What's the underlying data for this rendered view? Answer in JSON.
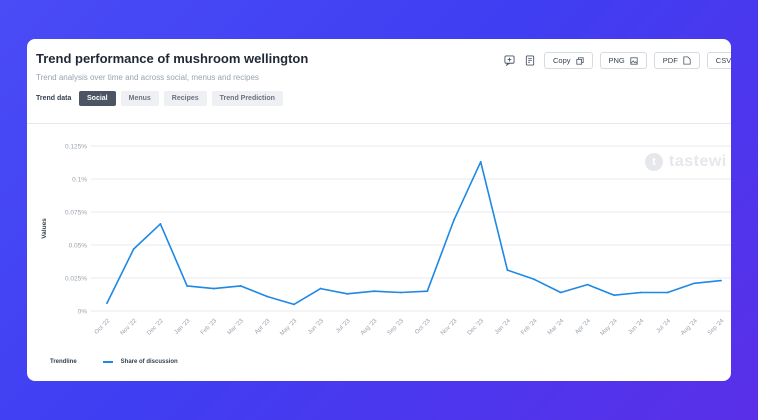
{
  "header": {
    "title": "Trend performance of mushroom wellington",
    "subtitle": "Trend analysis over time and across social, menus and recipes"
  },
  "tabs_label": "Trend data",
  "tabs": [
    {
      "label": "Social",
      "active": true
    },
    {
      "label": "Menus",
      "active": false
    },
    {
      "label": "Recipes",
      "active": false
    },
    {
      "label": "Trend Prediction",
      "active": false
    }
  ],
  "toolbar": {
    "icons": [
      "add-comment-icon",
      "report-icon"
    ],
    "copy_label": "Copy",
    "png_label": "PNG",
    "pdf_label": "PDF",
    "csv_label": "CSV"
  },
  "watermark": {
    "letter": "t",
    "text": "tastewi"
  },
  "legend": {
    "title": "Trendline",
    "series_name": "Share of discussion"
  },
  "colors": {
    "line": "#1e88e5",
    "grid": "#e8eaed",
    "tick": "#9aa3ad"
  },
  "chart_data": {
    "type": "line",
    "ylabel": "Values",
    "ylim": [
      0,
      0.125
    ],
    "yticks": [
      0,
      0.025,
      0.05,
      0.075,
      0.1,
      0.125
    ],
    "ytick_labels": [
      "0%",
      "0.025%",
      "0.05%",
      "0.075%",
      "0.1%",
      "0.125%"
    ],
    "x": [
      "Oct '22",
      "Nov '22",
      "Dec '22",
      "Jan '23",
      "Feb '23",
      "Mar '23",
      "Apr '23",
      "May '23",
      "Jun '23",
      "Jul '23",
      "Aug '23",
      "Sep '23",
      "Oct '23",
      "Nov '23",
      "Dec '23",
      "Jan '24",
      "Feb '24",
      "Mar '24",
      "Apr '24",
      "May '24",
      "Jun '24",
      "Jul '24",
      "Aug '24",
      "Sep '24"
    ],
    "series": [
      {
        "name": "Share of discussion",
        "values": [
          0.006,
          0.047,
          0.066,
          0.019,
          0.017,
          0.019,
          0.011,
          0.005,
          0.017,
          0.013,
          0.015,
          0.014,
          0.015,
          0.069,
          0.113,
          0.031,
          0.024,
          0.014,
          0.02,
          0.012,
          0.014,
          0.014,
          0.021,
          0.023
        ]
      }
    ],
    "grid": true
  }
}
